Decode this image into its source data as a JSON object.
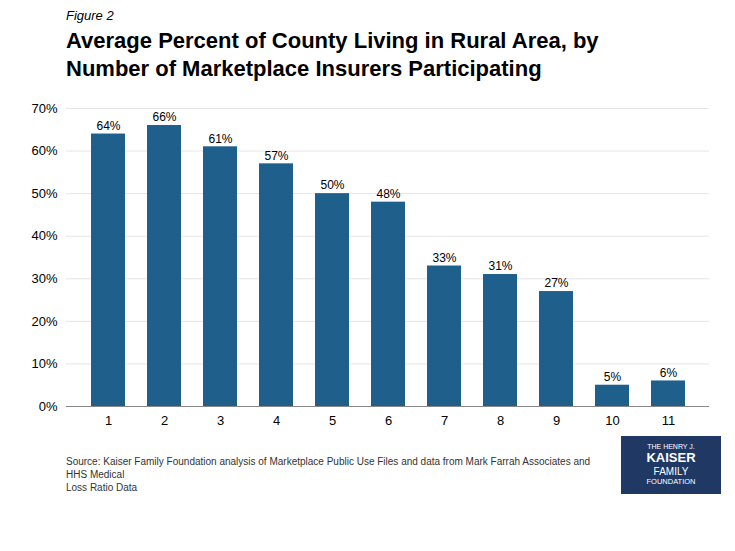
{
  "chart_data": {
    "type": "bar",
    "subtitle": "Figure 2",
    "title": "Average Percent of County Living in Rural Area, by\nNumber of Marketplace Insurers Participating",
    "categories": [
      1,
      2,
      3,
      4,
      5,
      6,
      7,
      8,
      9,
      10,
      11
    ],
    "values": [
      64,
      66,
      61,
      57,
      50,
      48,
      33,
      31,
      27,
      5,
      6
    ],
    "value_labels": [
      "64%",
      "66%",
      "61%",
      "57%",
      "50%",
      "48%",
      "33%",
      "31%",
      "27%",
      "5%",
      "6%"
    ],
    "data_labels": true,
    "color": "#1F5F8B",
    "ylim": [
      0,
      70
    ],
    "yticks": [
      {
        "value": 0,
        "label": "0%"
      },
      {
        "value": 10,
        "label": "10%"
      },
      {
        "value": 20,
        "label": "20%"
      },
      {
        "value": 30,
        "label": "30%"
      },
      {
        "value": 40,
        "label": "40%"
      },
      {
        "value": 50,
        "label": "50%"
      },
      {
        "value": 60,
        "label": "60%"
      },
      {
        "value": 70,
        "label": "70%"
      }
    ],
    "grid": true,
    "caption": "Source: Kaiser Family Foundation analysis of Marketplace Public Use Files and data from Mark Farrah Associates and HHS Medical\nLoss Ratio Data",
    "annotations": [
      {
        "text": [
          "THE HENRY J.",
          "KAISER",
          "FAMILY",
          "FOUNDATION"
        ],
        "color": "#1F3864"
      }
    ]
  }
}
